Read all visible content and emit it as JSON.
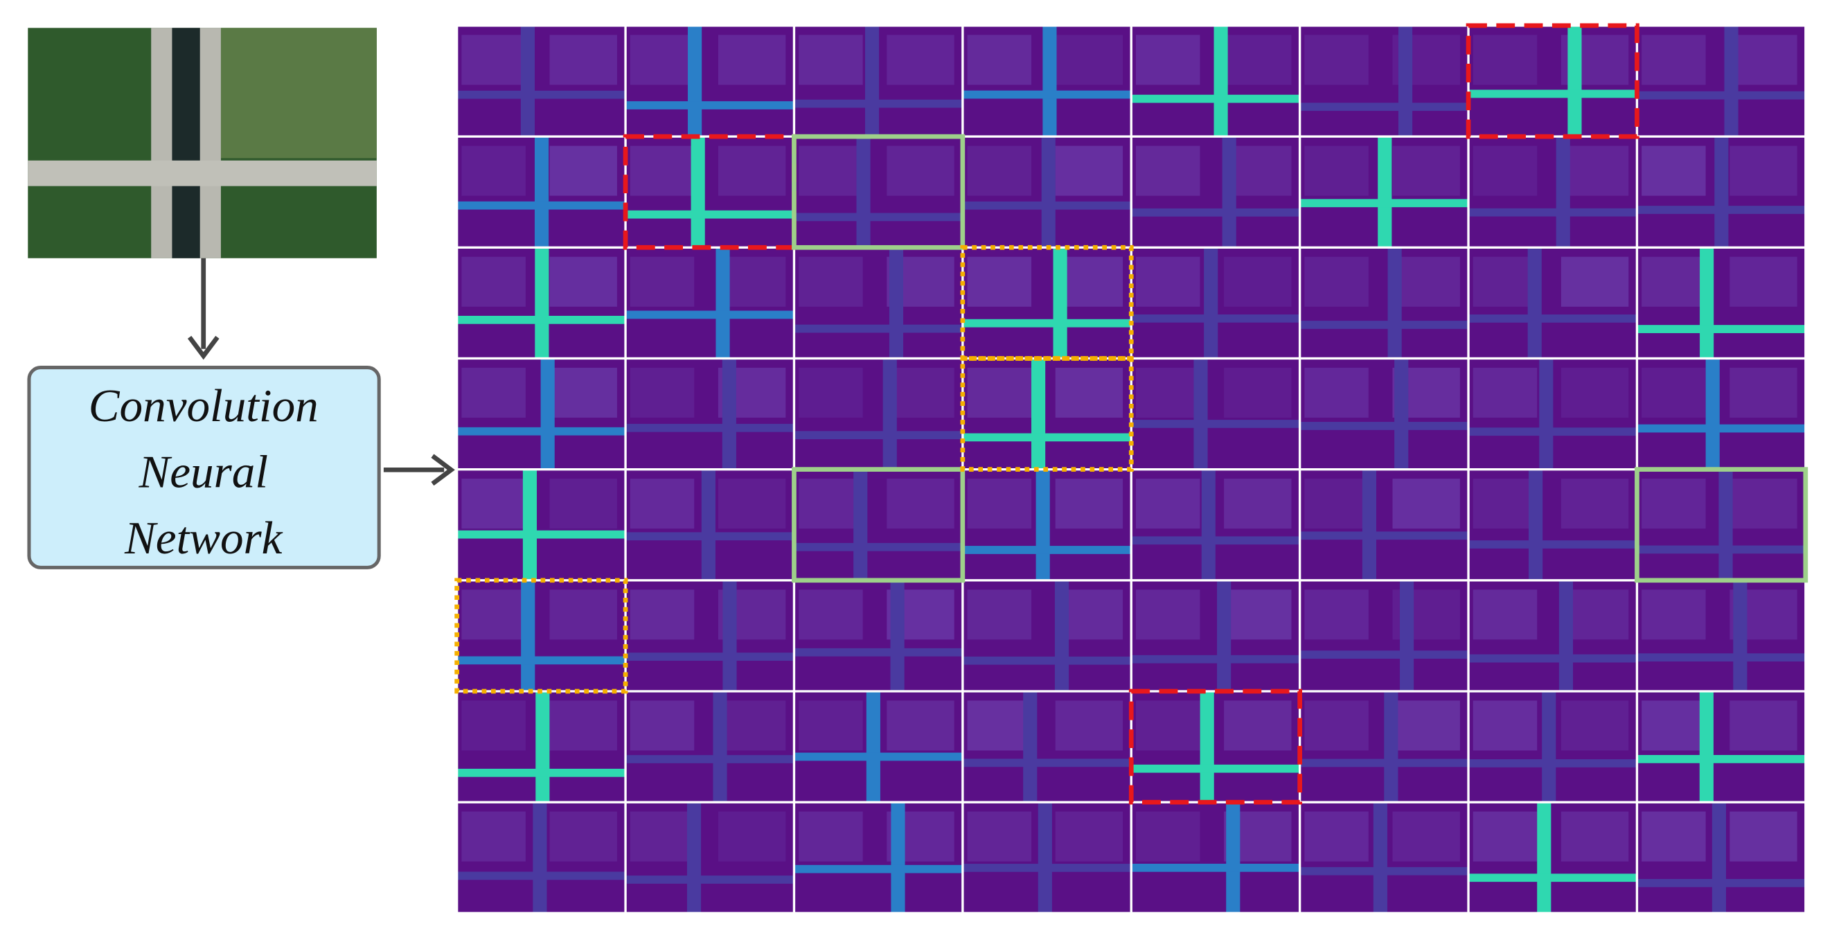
{
  "box": {
    "lines": [
      "Convolution",
      "Neural",
      "Network"
    ]
  }
}
